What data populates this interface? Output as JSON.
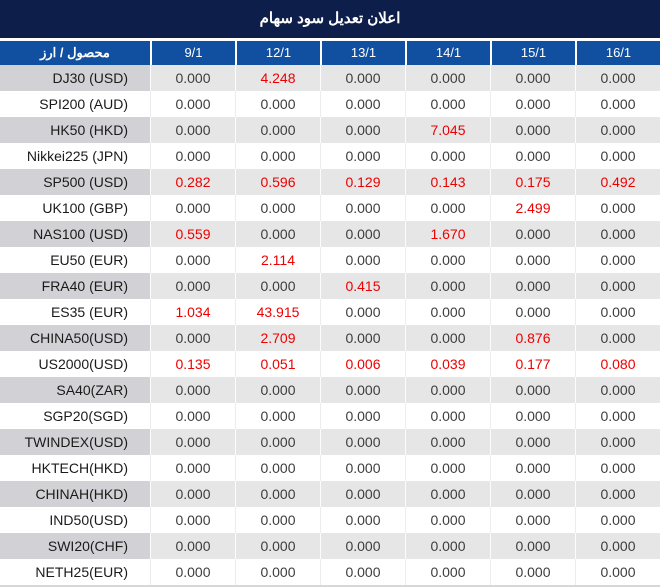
{
  "chart_data": {
    "type": "table",
    "title": "اعلان تعديل سود سهام",
    "corner_label": "محصول / ارز",
    "columns": [
      "9/1",
      "12/1",
      "13/1",
      "14/1",
      "15/1",
      "16/1"
    ],
    "rows": [
      {
        "name": "DJ30 (USD)",
        "values": [
          "0.000",
          "4.248",
          "0.000",
          "0.000",
          "0.000",
          "0.000"
        ],
        "red": [
          false,
          true,
          false,
          false,
          false,
          false
        ]
      },
      {
        "name": "SPI200 (AUD)",
        "values": [
          "0.000",
          "0.000",
          "0.000",
          "0.000",
          "0.000",
          "0.000"
        ],
        "red": [
          false,
          false,
          false,
          false,
          false,
          false
        ]
      },
      {
        "name": "HK50 (HKD)",
        "values": [
          "0.000",
          "0.000",
          "0.000",
          "7.045",
          "0.000",
          "0.000"
        ],
        "red": [
          false,
          false,
          false,
          true,
          false,
          false
        ]
      },
      {
        "name": "Nikkei225 (JPN)",
        "values": [
          "0.000",
          "0.000",
          "0.000",
          "0.000",
          "0.000",
          "0.000"
        ],
        "red": [
          false,
          false,
          false,
          false,
          false,
          false
        ]
      },
      {
        "name": "SP500 (USD)",
        "values": [
          "0.282",
          "0.596",
          "0.129",
          "0.143",
          "0.175",
          "0.492"
        ],
        "red": [
          true,
          true,
          true,
          true,
          true,
          true
        ]
      },
      {
        "name": "UK100 (GBP)",
        "values": [
          "0.000",
          "0.000",
          "0.000",
          "0.000",
          "2.499",
          "0.000"
        ],
        "red": [
          false,
          false,
          false,
          false,
          true,
          false
        ]
      },
      {
        "name": "NAS100 (USD)",
        "values": [
          "0.559",
          "0.000",
          "0.000",
          "1.670",
          "0.000",
          "0.000"
        ],
        "red": [
          true,
          false,
          false,
          true,
          false,
          false
        ]
      },
      {
        "name": "EU50 (EUR)",
        "values": [
          "0.000",
          "2.114",
          "0.000",
          "0.000",
          "0.000",
          "0.000"
        ],
        "red": [
          false,
          true,
          false,
          false,
          false,
          false
        ]
      },
      {
        "name": "FRA40 (EUR)",
        "values": [
          "0.000",
          "0.000",
          "0.415",
          "0.000",
          "0.000",
          "0.000"
        ],
        "red": [
          false,
          false,
          true,
          false,
          false,
          false
        ]
      },
      {
        "name": "ES35 (EUR)",
        "values": [
          "1.034",
          "43.915",
          "0.000",
          "0.000",
          "0.000",
          "0.000"
        ],
        "red": [
          true,
          true,
          false,
          false,
          false,
          false
        ]
      },
      {
        "name": "CHINA50(USD)",
        "values": [
          "0.000",
          "2.709",
          "0.000",
          "0.000",
          "0.876",
          "0.000"
        ],
        "red": [
          false,
          true,
          false,
          false,
          true,
          false
        ]
      },
      {
        "name": "US2000(USD)",
        "values": [
          "0.135",
          "0.051",
          "0.006",
          "0.039",
          "0.177",
          "0.080"
        ],
        "red": [
          true,
          true,
          true,
          true,
          true,
          true
        ]
      },
      {
        "name": "SA40(ZAR)",
        "values": [
          "0.000",
          "0.000",
          "0.000",
          "0.000",
          "0.000",
          "0.000"
        ],
        "red": [
          false,
          false,
          false,
          false,
          false,
          false
        ]
      },
      {
        "name": "SGP20(SGD)",
        "values": [
          "0.000",
          "0.000",
          "0.000",
          "0.000",
          "0.000",
          "0.000"
        ],
        "red": [
          false,
          false,
          false,
          false,
          false,
          false
        ]
      },
      {
        "name": "TWINDEX(USD)",
        "values": [
          "0.000",
          "0.000",
          "0.000",
          "0.000",
          "0.000",
          "0.000"
        ],
        "red": [
          false,
          false,
          false,
          false,
          false,
          false
        ]
      },
      {
        "name": "HKTECH(HKD)",
        "values": [
          "0.000",
          "0.000",
          "0.000",
          "0.000",
          "0.000",
          "0.000"
        ],
        "red": [
          false,
          false,
          false,
          false,
          false,
          false
        ]
      },
      {
        "name": "CHINAH(HKD)",
        "values": [
          "0.000",
          "0.000",
          "0.000",
          "0.000",
          "0.000",
          "0.000"
        ],
        "red": [
          false,
          false,
          false,
          false,
          false,
          false
        ]
      },
      {
        "name": "IND50(USD)",
        "values": [
          "0.000",
          "0.000",
          "0.000",
          "0.000",
          "0.000",
          "0.000"
        ],
        "red": [
          false,
          false,
          false,
          false,
          false,
          false
        ]
      },
      {
        "name": "SWI20(CHF)",
        "values": [
          "0.000",
          "0.000",
          "0.000",
          "0.000",
          "0.000",
          "0.000"
        ],
        "red": [
          false,
          false,
          false,
          false,
          false,
          false
        ]
      },
      {
        "name": "NETH25(EUR)",
        "values": [
          "0.000",
          "0.000",
          "0.000",
          "0.000",
          "0.000",
          "0.000"
        ],
        "red": [
          false,
          false,
          false,
          false,
          false,
          false
        ]
      }
    ]
  },
  "colors": {
    "title_bar_bg": "#0d1e4a",
    "header_bg": "#1150a0",
    "header_text": "#ffffff",
    "red_value": "#ee0000",
    "stripe_bg": "#e6e6e6",
    "stripe_label_bg": "#d2d2d6",
    "value_text": "#3d3d3d",
    "label_text": "#1a1a1a"
  }
}
